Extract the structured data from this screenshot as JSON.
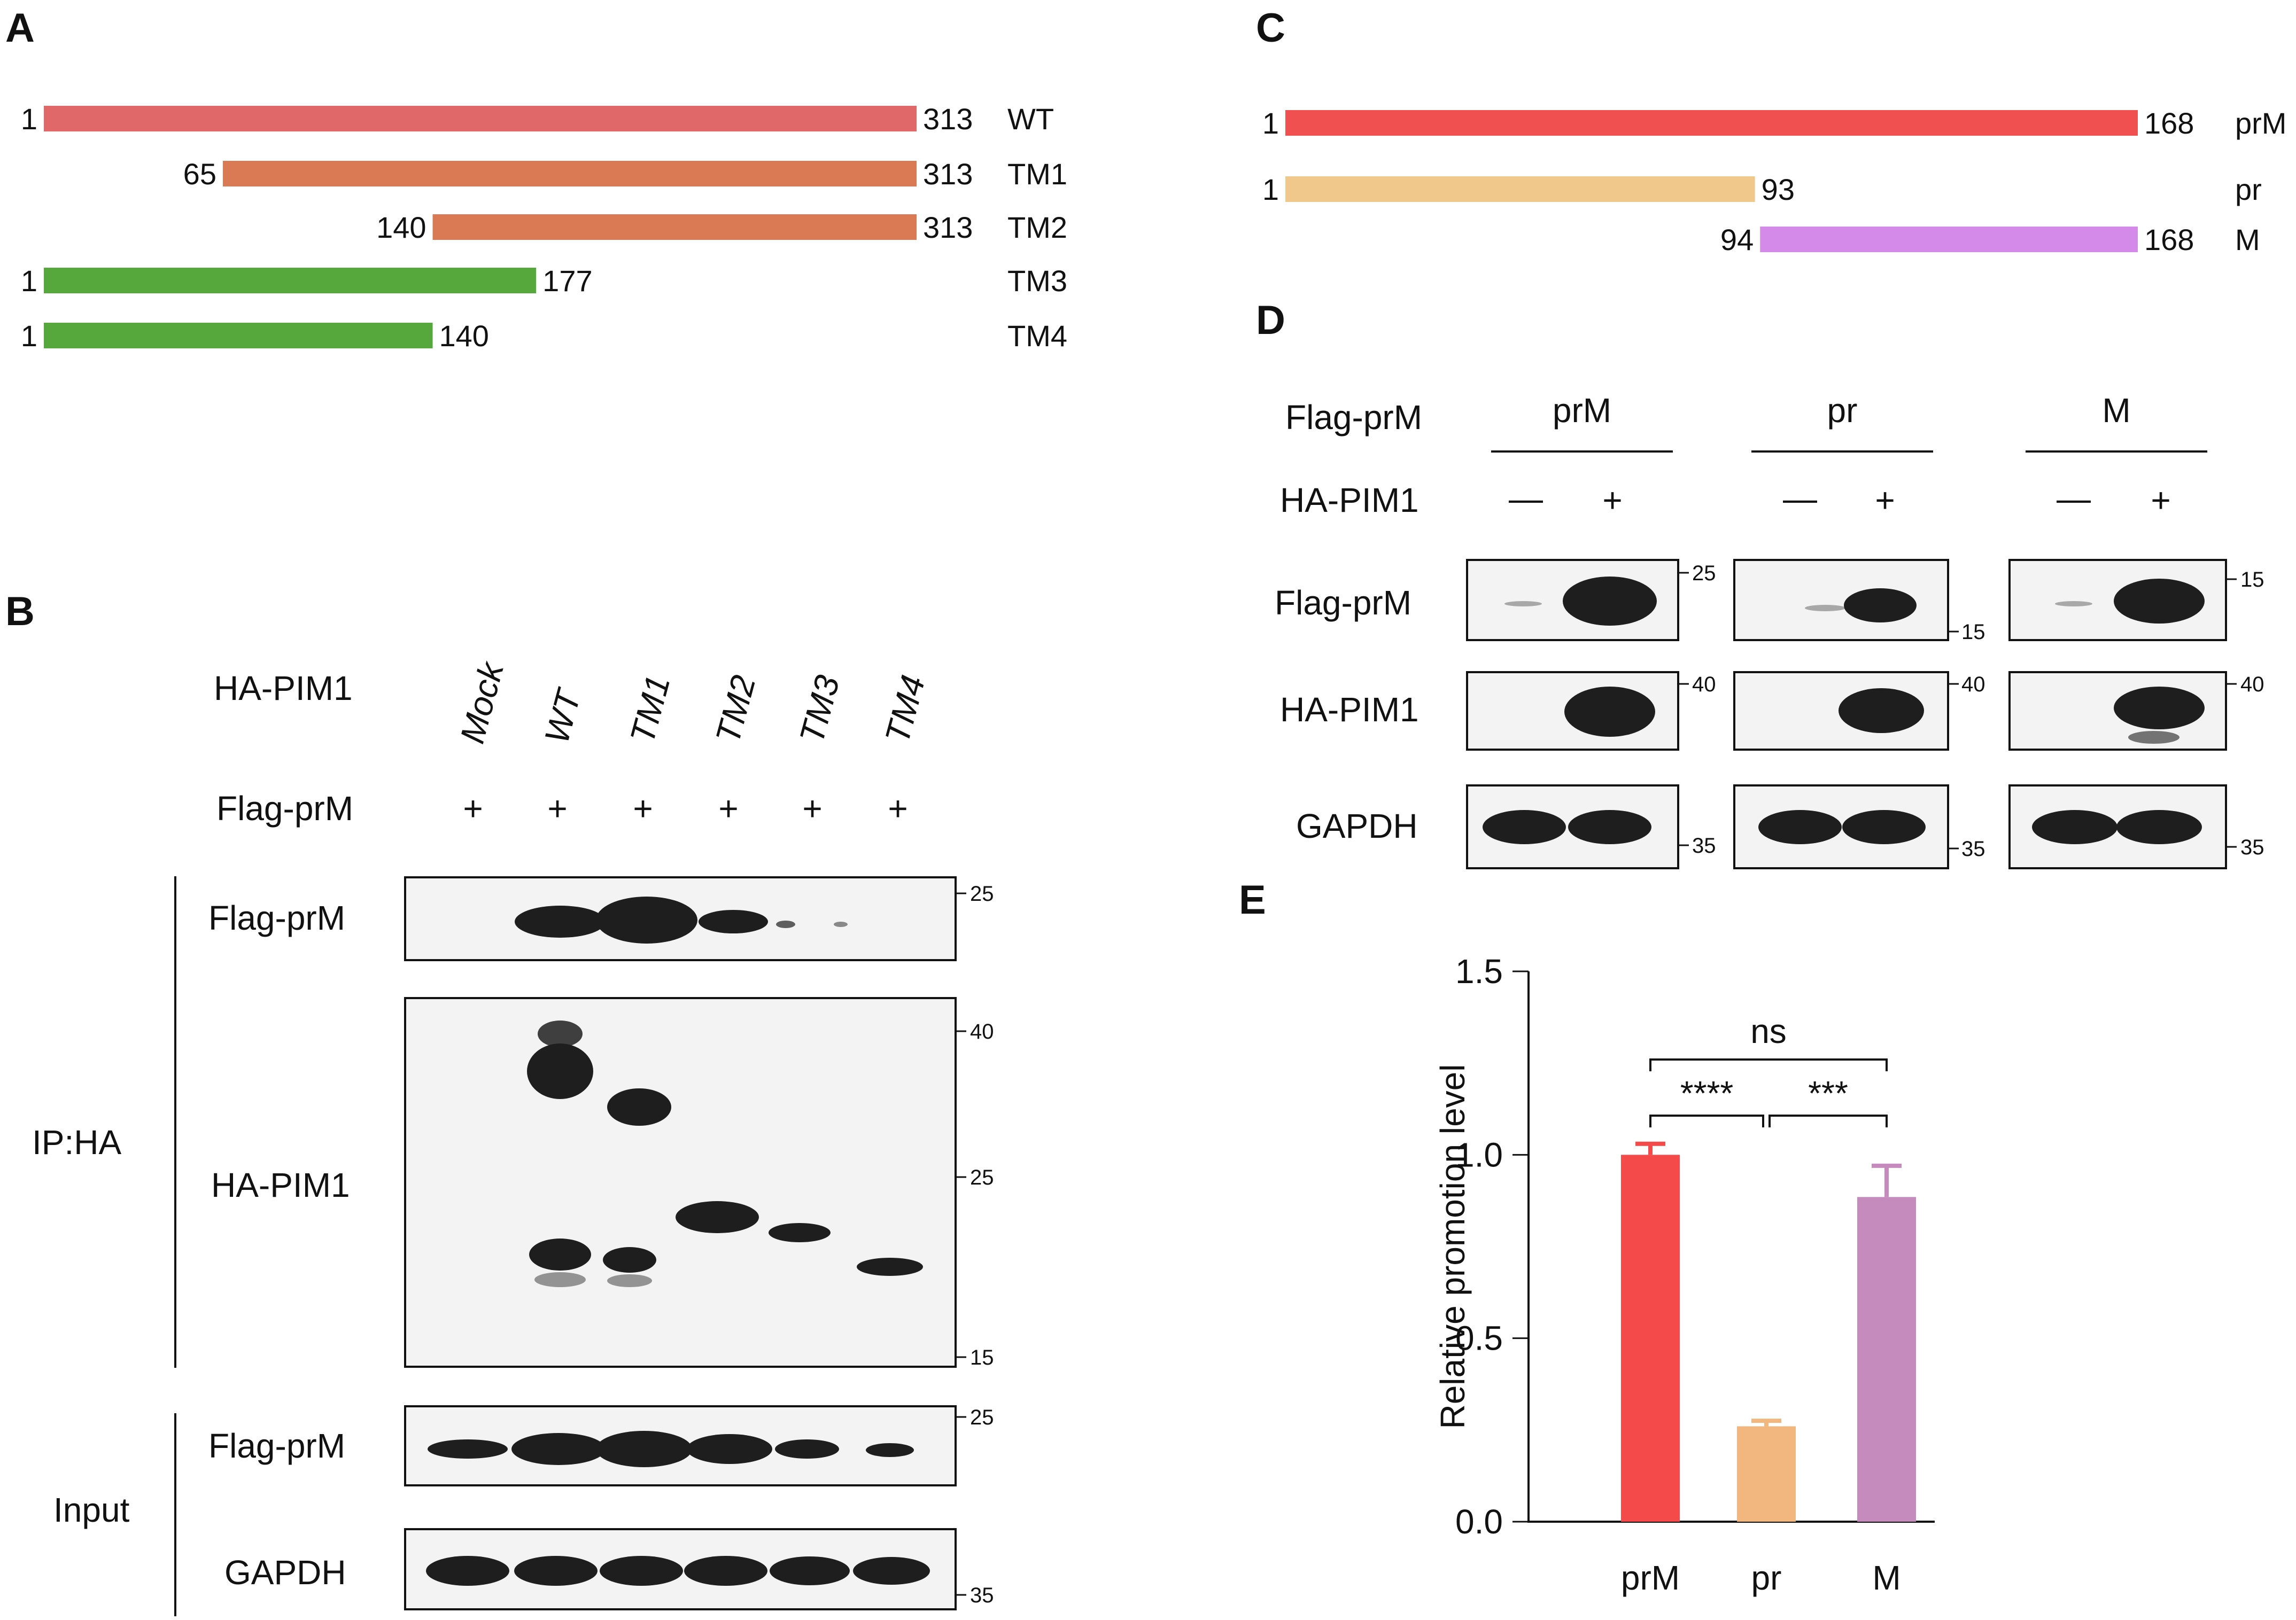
{
  "panels": {
    "A": {
      "label": "A",
      "constructs": [
        {
          "name": "WT",
          "start": 1,
          "end": 313,
          "color": "#e06868"
        },
        {
          "name": "TM1",
          "start": 65,
          "end": 313,
          "color": "#d97a55"
        },
        {
          "name": "TM2",
          "start": 140,
          "end": 313,
          "color": "#d97a55"
        },
        {
          "name": "TM3",
          "start": 1,
          "end": 177,
          "color": "#56a83c"
        },
        {
          "name": "TM4",
          "start": 1,
          "end": 140,
          "color": "#56a83c"
        }
      ]
    },
    "B": {
      "label": "B",
      "row_labels": {
        "ha": "HA-PIM1",
        "flag": "Flag-prM"
      },
      "lanes": [
        "Mock",
        "WT",
        "TM1",
        "TM2",
        "TM3",
        "TM4"
      ],
      "plus": "+",
      "groups": {
        "ip": "IP:HA",
        "input": "Input"
      },
      "blots": {
        "ip_flag": {
          "label": "Flag-prM",
          "markers": [
            "25"
          ]
        },
        "ip_ha": {
          "label": "HA-PIM1",
          "markers": [
            "40",
            "25",
            "15"
          ]
        },
        "in_flag": {
          "label": "Flag-prM",
          "markers": [
            "25"
          ]
        },
        "in_gapdh": {
          "label": "GAPDH",
          "markers": [
            "35"
          ]
        }
      }
    },
    "C": {
      "label": "C",
      "constructs": [
        {
          "name": "prM",
          "start": 1,
          "end": 168,
          "color": "#f05050"
        },
        {
          "name": "pr",
          "start": 1,
          "end": 93,
          "color": "#f0c88c"
        },
        {
          "name": "M",
          "start": 94,
          "end": 168,
          "color": "#d48ae8"
        }
      ]
    },
    "D": {
      "label": "D",
      "row_labels": {
        "flag": "Flag-prM",
        "ha": "HA-PIM1"
      },
      "groups": [
        "prM",
        "pr",
        "M"
      ],
      "minus": "—",
      "plus": "+",
      "blots": {
        "flag": {
          "label": "Flag-prM",
          "markers": [
            "25",
            "15",
            "15"
          ]
        },
        "ha": {
          "label": "HA-PIM1",
          "markers": [
            "40",
            "40",
            "40"
          ]
        },
        "gapdh": {
          "label": "GAPDH",
          "markers": [
            "35",
            "35",
            "35"
          ]
        }
      }
    },
    "E": {
      "label": "E",
      "chart_data": {
        "type": "bar",
        "categories": [
          "prM",
          "pr",
          "M"
        ],
        "values": [
          1.0,
          0.26,
          0.885
        ],
        "errors": [
          0.03,
          0.015,
          0.085
        ],
        "colors": [
          "#f44a4a",
          "#f2b77e",
          "#c48bbc"
        ],
        "ylabel": "Relative promotion level",
        "ylim": [
          0,
          1.5
        ],
        "yticks": [
          "0.0",
          "0.5",
          "1.0",
          "1.5"
        ],
        "significance": [
          {
            "from": "prM",
            "to": "pr",
            "label": "****"
          },
          {
            "from": "pr",
            "to": "M",
            "label": "***"
          },
          {
            "from": "prM",
            "to": "M",
            "label": "ns"
          }
        ]
      }
    }
  }
}
